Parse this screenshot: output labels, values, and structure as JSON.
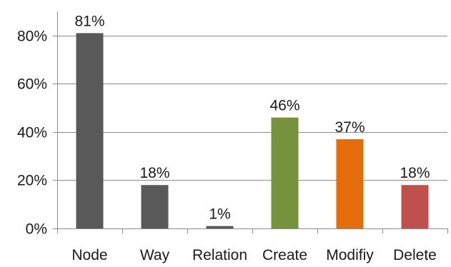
{
  "chart_data": {
    "type": "bar",
    "title": "",
    "xlabel": "",
    "ylabel": "",
    "categories": [
      "Node",
      "Way",
      "Relation",
      "Create",
      "Modifiy",
      "Delete"
    ],
    "values": [
      81,
      18,
      1,
      46,
      37,
      18
    ],
    "data_labels": [
      "81%",
      "18%",
      "1%",
      "46%",
      "37%",
      "18%"
    ],
    "ylim": [
      0,
      90
    ],
    "y_ticks": [
      0,
      20,
      40,
      60,
      80
    ],
    "y_tick_labels": [
      "0%",
      "20%",
      "40%",
      "60%",
      "80%"
    ],
    "grid": true,
    "legend": "none",
    "colors": [
      "#595959",
      "#595959",
      "#595959",
      "#76923c",
      "#e46c0a",
      "#c0504d"
    ]
  }
}
